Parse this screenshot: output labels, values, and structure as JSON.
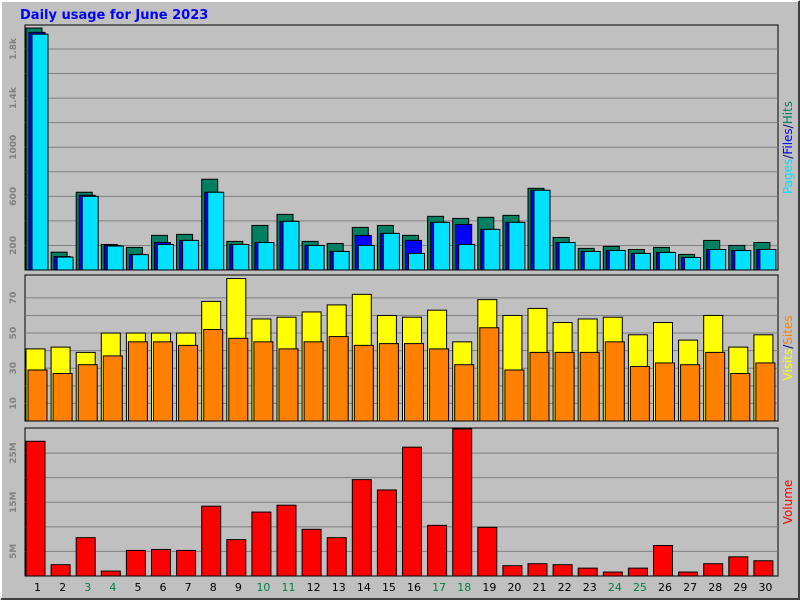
{
  "chart_data": [
    {
      "type": "bar",
      "title": "Daily usage for June 2023",
      "legend_separator": "/",
      "draw_order": "reverse",
      "grid": true,
      "ylim": [
        0,
        1995
      ],
      "yticks": [
        200,
        600,
        1000,
        {
          "value": 1400,
          "label": "1.4k"
        },
        {
          "value": 1800,
          "label": "1.8k"
        }
      ],
      "series": [
        {
          "name": "Pages",
          "color": "#00e0ff",
          "values": [
            1920,
            105,
            600,
            195,
            125,
            208,
            241,
            633,
            208,
            224,
            396,
            200,
            151,
            200,
            298,
            135,
            388,
            208,
            331,
            388,
            649,
            224,
            151,
            159,
            135,
            143,
            102,
            167,
            159,
            167
          ]
        },
        {
          "name": "Files",
          "color": "#0000ff",
          "values": [
            1935,
            110,
            608,
            200,
            127,
            224,
            241,
            633,
            208,
            224,
            396,
            200,
            151,
            282,
            298,
            241,
            388,
            371,
            331,
            388,
            649,
            224,
            151,
            159,
            135,
            143,
            102,
            167,
            159,
            167
          ]
        },
        {
          "name": "Hits",
          "color": "#008060",
          "values": [
            1970,
            145,
            633,
            208,
            184,
            282,
            290,
            739,
            233,
            363,
            453,
            233,
            216,
            347,
            363,
            282,
            437,
            420,
            429,
            445,
            665,
            265,
            176,
            192,
            167,
            184,
            127,
            241,
            200,
            224
          ]
        }
      ]
    },
    {
      "type": "bar",
      "legend_separator": "/",
      "draw_order": "forward",
      "grid": true,
      "ylim": [
        0,
        83
      ],
      "yticks": [
        10,
        30,
        50,
        70
      ],
      "series": [
        {
          "name": "Visits",
          "color": "#ffff00",
          "values": [
            41,
            42,
            39,
            50,
            50,
            50,
            50,
            68,
            81,
            58,
            59,
            62,
            66,
            72,
            60,
            59,
            63,
            45,
            69,
            60,
            64,
            56,
            58,
            59,
            49,
            56,
            46,
            60,
            42,
            49
          ]
        },
        {
          "name": "Sites",
          "color": "#ff8000",
          "values": [
            29,
            27,
            32,
            37,
            45,
            45,
            43,
            52,
            47,
            45,
            41,
            45,
            48,
            43,
            44,
            44,
            41,
            32,
            53,
            29,
            39,
            39,
            39,
            45,
            31,
            33,
            32,
            39,
            27,
            33
          ]
        }
      ]
    },
    {
      "type": "bar",
      "grid": true,
      "ylim": [
        0,
        30.1
      ],
      "yticks": [
        {
          "value": 5,
          "label": "5M"
        },
        {
          "value": 15,
          "label": "15M"
        },
        {
          "value": 25,
          "label": "25M"
        }
      ],
      "categories": [
        "1",
        "2",
        "3",
        "4",
        "5",
        "6",
        "7",
        "8",
        "9",
        "10",
        "11",
        "12",
        "13",
        "14",
        "15",
        "16",
        "17",
        "18",
        "19",
        "20",
        "21",
        "22",
        "23",
        "24",
        "25",
        "26",
        "27",
        "28",
        "29",
        "30"
      ],
      "weekend_color": "#008040",
      "weekends": [
        "3",
        "4",
        "10",
        "11",
        "17",
        "18",
        "24",
        "25"
      ],
      "series": [
        {
          "name": "Volume",
          "color": "#ff0000",
          "values": [
            27.4,
            2.3,
            7.8,
            1.0,
            5.2,
            5.4,
            5.2,
            14.2,
            7.4,
            13.0,
            14.4,
            9.5,
            7.8,
            19.6,
            17.5,
            26.2,
            10.3,
            29.9,
            9.9,
            2.1,
            2.5,
            2.3,
            1.6,
            0.8,
            1.6,
            6.2,
            0.8,
            2.5,
            3.9,
            3.1
          ]
        }
      ]
    }
  ]
}
